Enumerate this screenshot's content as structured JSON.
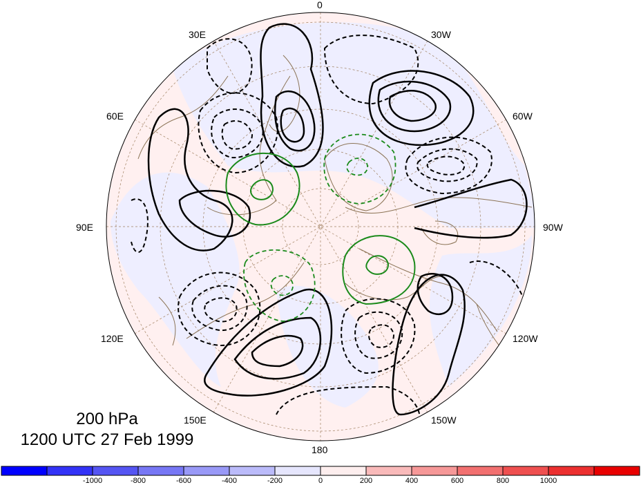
{
  "map": {
    "projection": "north-polar-stereographic",
    "field_colors": {
      "negative_fill": "#eeeeff",
      "positive_fill": "#fff0f0",
      "coast": "#8b7355"
    }
  },
  "longitude_labels": {
    "lon_0": "0",
    "lon_30w": "30W",
    "lon_60w": "60W",
    "lon_90w": "90W",
    "lon_120w": "120W",
    "lon_150w": "150W",
    "lon_180": "180",
    "lon_150e": "150E",
    "lon_120e": "120E",
    "lon_90e": "90E",
    "lon_60e": "60E",
    "lon_30e": "30E"
  },
  "title": {
    "level": "200 hPa",
    "datetime": "1200 UTC 27 Feb 1999"
  },
  "colorbar": {
    "colors": [
      "#0000ff",
      "#3333f7",
      "#5555f3",
      "#7777f5",
      "#9999f7",
      "#bbbbfa",
      "#e6e6fd",
      "#fdeeee",
      "#f9baba",
      "#f69898",
      "#f27070",
      "#ef5050",
      "#ec3030",
      "#e80000"
    ],
    "ticks": [
      "-1000",
      "-800",
      "-600",
      "-400",
      "-200",
      "0",
      "200",
      "400",
      "600",
      "800",
      "1000"
    ]
  },
  "contour_legend": {
    "solid_black": "positive",
    "dashed_black": "negative",
    "green_solid": "positive",
    "green_dashed": "negative"
  }
}
